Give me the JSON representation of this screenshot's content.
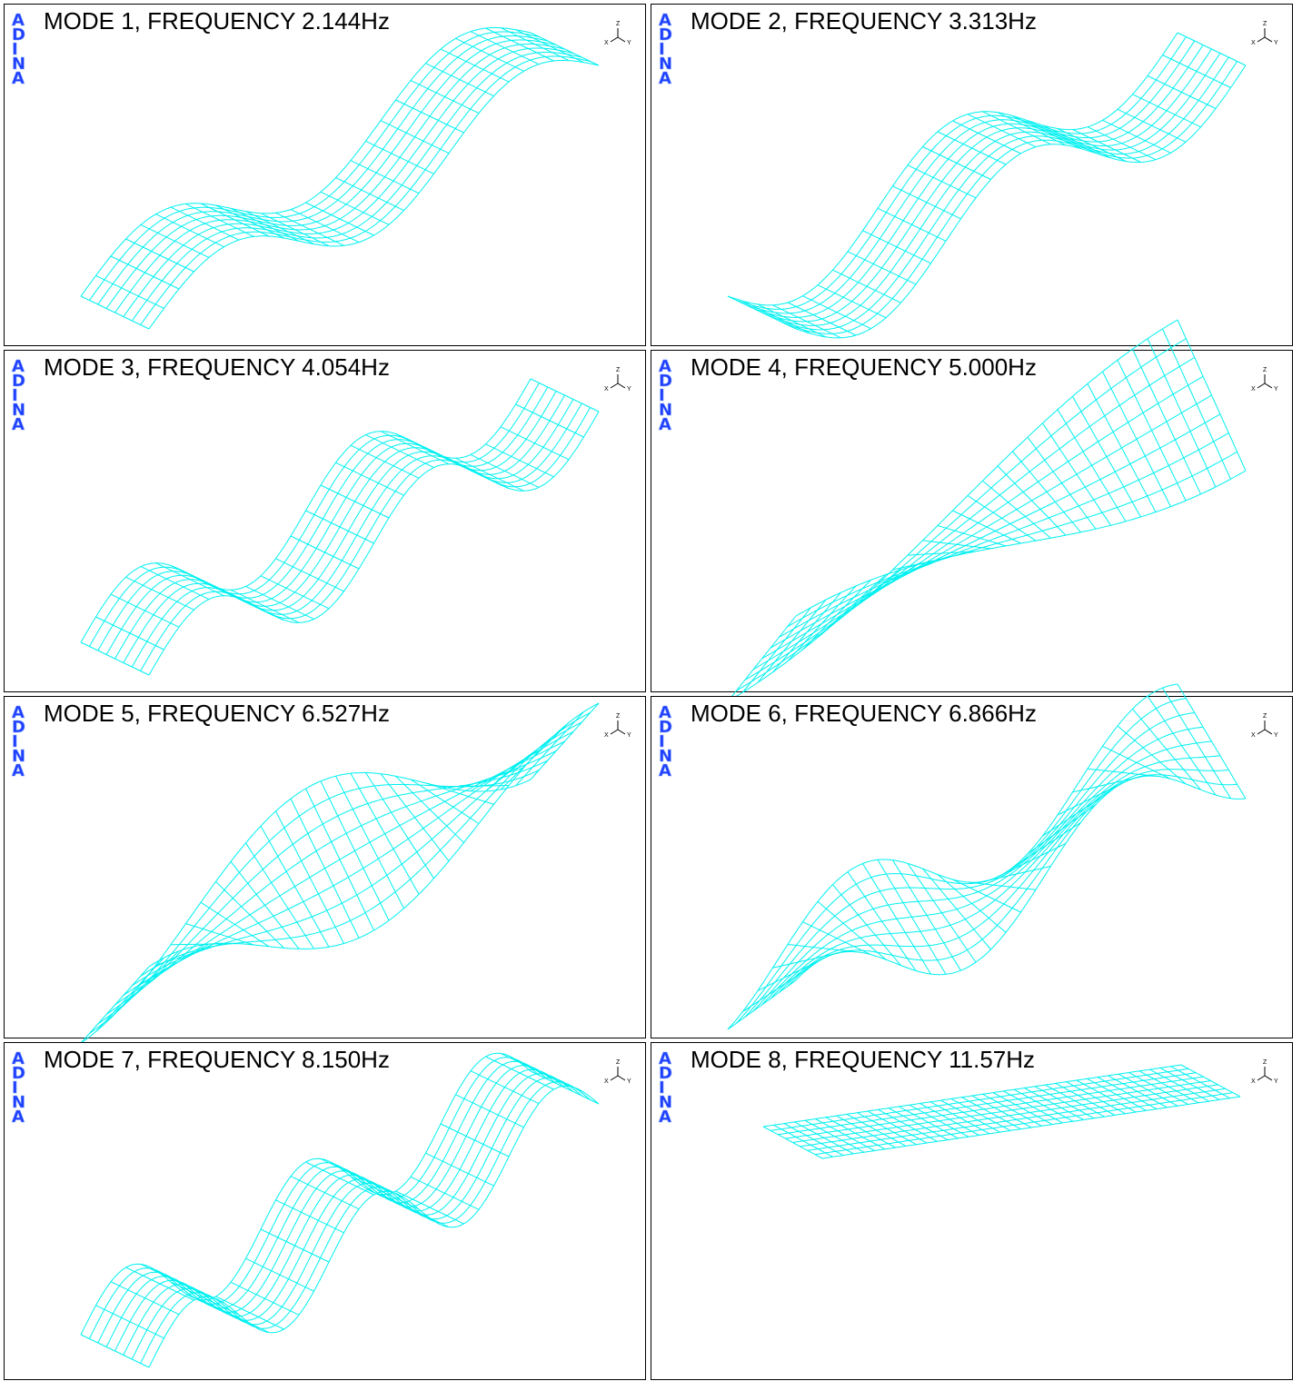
{
  "panels": [
    {
      "title": "MODE 1, FREQUENCY 2.144Hz",
      "logo": [
        "A",
        "D",
        "I",
        "N",
        "A"
      ],
      "triad": [
        "Z",
        "X",
        "Y"
      ]
    },
    {
      "title": "MODE 2, FREQUENCY 3.313Hz",
      "logo": [
        "A",
        "D",
        "I",
        "N",
        "A"
      ],
      "triad": [
        "Z",
        "X",
        "Y"
      ]
    },
    {
      "title": "MODE 3, FREQUENCY 4.054Hz",
      "logo": [
        "A",
        "D",
        "I",
        "N",
        "A"
      ],
      "triad": [
        "Z",
        "X",
        "Y"
      ]
    },
    {
      "title": "MODE 4, FREQUENCY 5.000Hz",
      "logo": [
        "A",
        "D",
        "I",
        "N",
        "A"
      ],
      "triad": [
        "Z",
        "X",
        "Y"
      ]
    },
    {
      "title": "MODE 5, FREQUENCY 6.527Hz",
      "logo": [
        "A",
        "D",
        "I",
        "N",
        "A"
      ],
      "triad": [
        "Z",
        "X",
        "Y"
      ]
    },
    {
      "title": "MODE 6, FREQUENCY 6.866Hz",
      "logo": [
        "A",
        "D",
        "I",
        "N",
        "A"
      ],
      "triad": [
        "Z",
        "X",
        "Y"
      ]
    },
    {
      "title": "MODE 7, FREQUENCY 8.150Hz",
      "logo": [
        "A",
        "D",
        "I",
        "N",
        "A"
      ],
      "triad": [
        "Z",
        "X",
        "Y"
      ]
    },
    {
      "title": "MODE 8, FREQUENCY 11.57Hz",
      "logo": [
        "A",
        "D",
        "I",
        "N",
        "A"
      ],
      "triad": [
        "Z",
        "X",
        "Y"
      ]
    }
  ]
}
